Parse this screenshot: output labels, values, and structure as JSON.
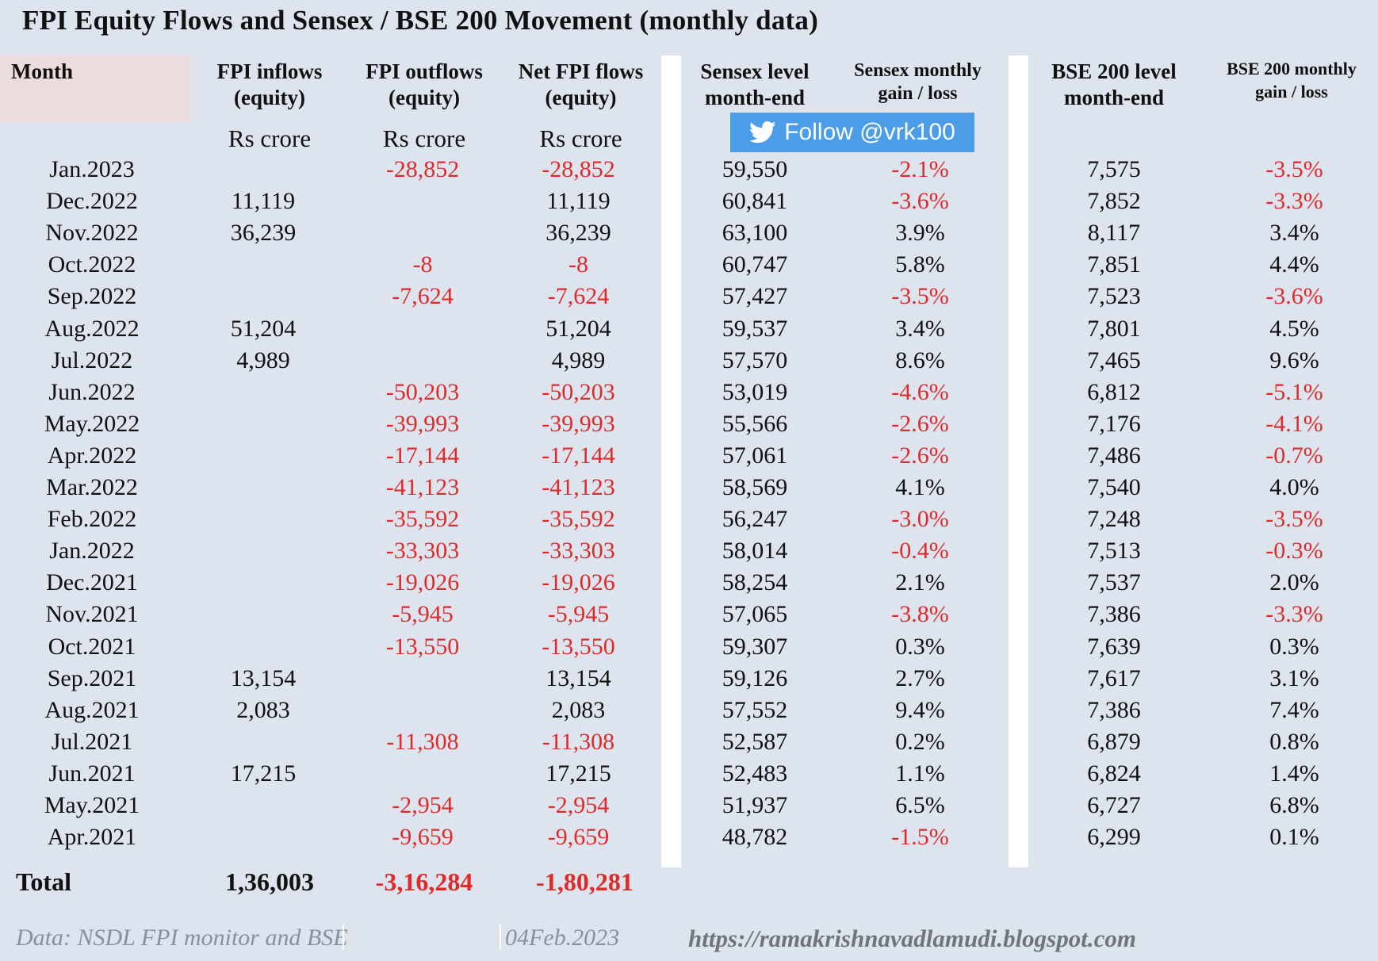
{
  "title": "FPI Equity Flows  and Sensex / BSE 200 Movement (monthly data)",
  "headers": {
    "month": "Month",
    "fpi_inflows": "FPI inflows\n(equity)",
    "fpi_outflows": "FPI outflows\n(equity)",
    "net_fpi": "Net FPI flows\n(equity)",
    "sensex_level": "Sensex level\nmonth-end",
    "sensex_change": "Sensex monthly\ngain / loss",
    "bse200_level": "BSE 200 level\nmonth-end",
    "bse200_change": "BSE 200 monthly\ngain / loss"
  },
  "units": {
    "inflows": "Rs crore",
    "outflows": "Rs crore",
    "net": "Rs crore"
  },
  "follow_badge": {
    "label": "Follow @vrk100",
    "icon": "twitter-bird-icon",
    "color": "#4a9de6"
  },
  "colors": {
    "negative": "#e02a2a",
    "background": "#dde4ee"
  },
  "chart_data": {
    "type": "table",
    "columns": [
      "Month",
      "FPI inflows (equity)",
      "FPI outflows (equity)",
      "Net FPI flows (equity)",
      "Sensex level month-end",
      "Sensex monthly gain / loss",
      "BSE 200 level month-end",
      "BSE 200 monthly gain / loss"
    ],
    "rows": [
      [
        "Jan.2023",
        "",
        "-28,852",
        "-28,852",
        "59,550",
        "-2.1%",
        "7,575",
        "-3.5%"
      ],
      [
        "Dec.2022",
        "11,119",
        "",
        "11,119",
        "60,841",
        "-3.6%",
        "7,852",
        "-3.3%"
      ],
      [
        "Nov.2022",
        "36,239",
        "",
        "36,239",
        "63,100",
        "3.9%",
        "8,117",
        "3.4%"
      ],
      [
        "Oct.2022",
        "",
        "-8",
        "-8",
        "60,747",
        "5.8%",
        "7,851",
        "4.4%"
      ],
      [
        "Sep.2022",
        "",
        "-7,624",
        "-7,624",
        "57,427",
        "-3.5%",
        "7,523",
        "-3.6%"
      ],
      [
        "Aug.2022",
        "51,204",
        "",
        "51,204",
        "59,537",
        "3.4%",
        "7,801",
        "4.5%"
      ],
      [
        "Jul.2022",
        "4,989",
        "",
        "4,989",
        "57,570",
        "8.6%",
        "7,465",
        "9.6%"
      ],
      [
        "Jun.2022",
        "",
        "-50,203",
        "-50,203",
        "53,019",
        "-4.6%",
        "6,812",
        "-5.1%"
      ],
      [
        "May.2022",
        "",
        "-39,993",
        "-39,993",
        "55,566",
        "-2.6%",
        "7,176",
        "-4.1%"
      ],
      [
        "Apr.2022",
        "",
        "-17,144",
        "-17,144",
        "57,061",
        "-2.6%",
        "7,486",
        "-0.7%"
      ],
      [
        "Mar.2022",
        "",
        "-41,123",
        "-41,123",
        "58,569",
        "4.1%",
        "7,540",
        "4.0%"
      ],
      [
        "Feb.2022",
        "",
        "-35,592",
        "-35,592",
        "56,247",
        "-3.0%",
        "7,248",
        "-3.5%"
      ],
      [
        "Jan.2022",
        "",
        "-33,303",
        "-33,303",
        "58,014",
        "-0.4%",
        "7,513",
        "-0.3%"
      ],
      [
        "Dec.2021",
        "",
        "-19,026",
        "-19,026",
        "58,254",
        "2.1%",
        "7,537",
        "2.0%"
      ],
      [
        "Nov.2021",
        "",
        "-5,945",
        "-5,945",
        "57,065",
        "-3.8%",
        "7,386",
        "-3.3%"
      ],
      [
        "Oct.2021",
        "",
        "-13,550",
        "-13,550",
        "59,307",
        "0.3%",
        "7,639",
        "0.3%"
      ],
      [
        "Sep.2021",
        "13,154",
        "",
        "13,154",
        "59,126",
        "2.7%",
        "7,617",
        "3.1%"
      ],
      [
        "Aug.2021",
        "2,083",
        "",
        "2,083",
        "57,552",
        "9.4%",
        "7,386",
        "7.4%"
      ],
      [
        "Jul.2021",
        "",
        "-11,308",
        "-11,308",
        "52,587",
        "0.2%",
        "6,879",
        "0.8%"
      ],
      [
        "Jun.2021",
        "17,215",
        "",
        "17,215",
        "52,483",
        "1.1%",
        "6,824",
        "1.4%"
      ],
      [
        "May.2021",
        "",
        "-2,954",
        "-2,954",
        "51,937",
        "6.5%",
        "6,727",
        "6.8%"
      ],
      [
        "Apr.2021",
        "",
        "-9,659",
        "-9,659",
        "48,782",
        "-1.5%",
        "6,299",
        "0.1%"
      ]
    ],
    "total": {
      "label": "Total",
      "fpi_inflows": "1,36,003",
      "fpi_outflows": "-3,16,284",
      "net_fpi": "-1,80,281"
    }
  },
  "footer": {
    "source": "Data: NSDL FPI monitor and BSE",
    "date": "04Feb.2023",
    "url": "https://ramakrishnavadlamudi.blogspot.com"
  }
}
